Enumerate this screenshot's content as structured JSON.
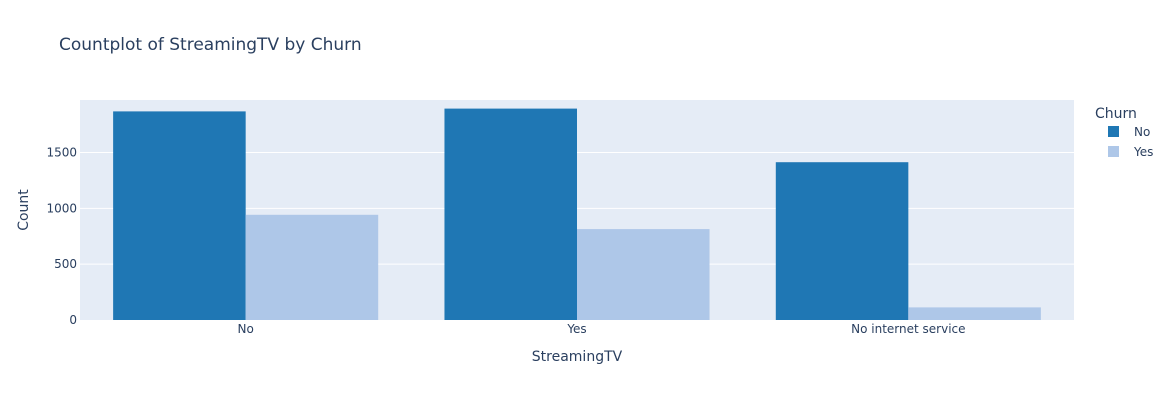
{
  "chart_data": {
    "type": "bar",
    "title": "Countplot of StreamingTV by Churn",
    "xlabel": "StreamingTV",
    "ylabel": "Count",
    "categories": [
      "No",
      "Yes",
      "No internet service"
    ],
    "series": [
      {
        "name": "No",
        "values": [
          1868,
          1893,
          1413
        ],
        "color": "#1f77b4"
      },
      {
        "name": "Yes",
        "values": [
          942,
          814,
          113
        ],
        "color": "#aec7e8"
      }
    ],
    "ylim": [
      0,
      1970
    ],
    "yticks": [
      0,
      500,
      1000,
      1500
    ],
    "legend": {
      "title": "Churn",
      "placement": "top-right outside plot"
    },
    "grid": true,
    "plot_bgcolor": "#e5ecf6",
    "gridcolor": "#ffffff"
  }
}
